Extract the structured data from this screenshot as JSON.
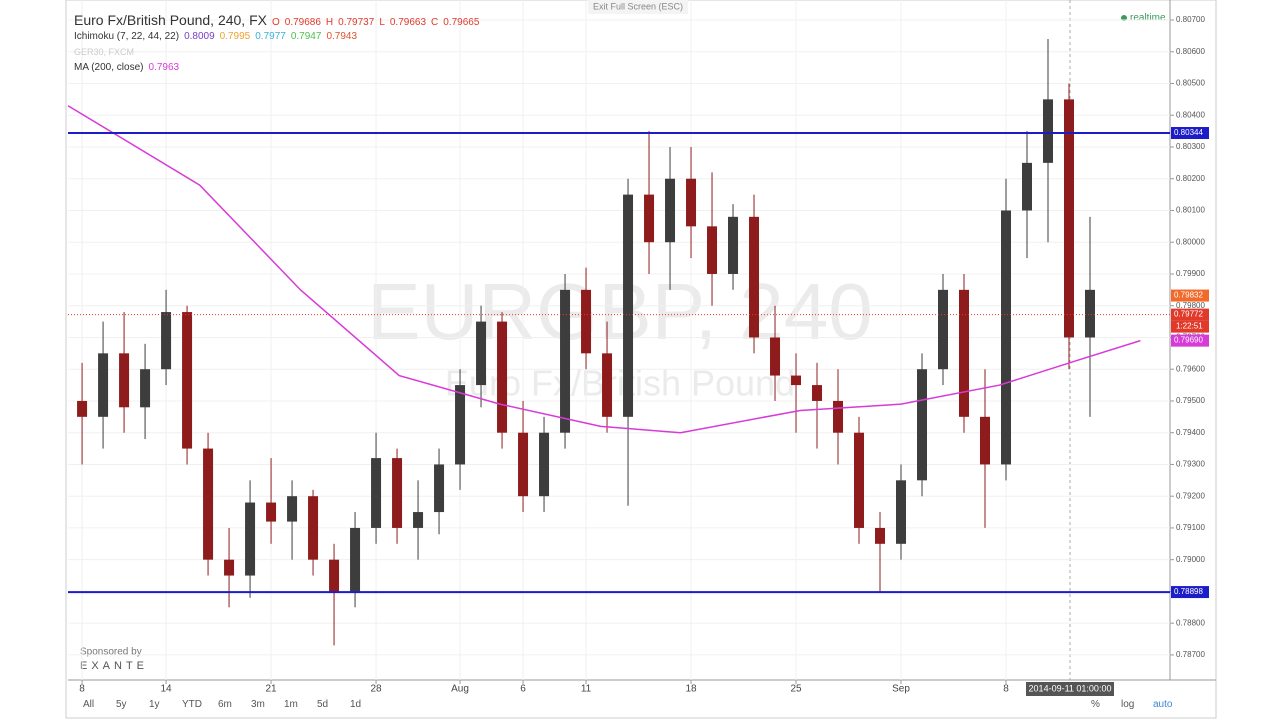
{
  "header": {
    "symbol": "Euro Fx/British Pound, 240, FX",
    "ohlc": [
      "O",
      "0.79686",
      "H",
      "0.79737",
      "L",
      "0.79663",
      "C",
      "0.79665"
    ],
    "ichimoku": {
      "name": "Ichimoku (7, 22, 44, 22)",
      "values": [
        {
          "text": "0.8009",
          "color": "#7b3fc4"
        },
        {
          "text": "0.7995",
          "color": "#f0a030"
        },
        {
          "text": "0.7977",
          "color": "#3ab0d8"
        },
        {
          "text": "0.7947",
          "color": "#4cc04c"
        },
        {
          "text": "0.7943",
          "color": "#e05030"
        }
      ]
    },
    "compare": "GER30, FXCM",
    "ma": {
      "name": "MA (200, close)",
      "value": "0.7963",
      "color": "#d83ad8"
    }
  },
  "exit": "Exit Full Screen (ESC)",
  "realtime": "realtime",
  "watermark": {
    "line1": "EURGBP, 240",
    "line2": "Euro Fx/British Pound"
  },
  "sponsor": {
    "by": "Sponsored by",
    "name": "EXANTE"
  },
  "cursor_time": "2014-09-11 01:00:00",
  "toolbar": {
    "ranges": [
      "All",
      "5y",
      "1y",
      "YTD",
      "6m",
      "3m",
      "1m",
      "5d",
      "1d"
    ],
    "right": [
      "%",
      "log",
      "auto"
    ]
  },
  "chart_data": {
    "type": "candlestick",
    "grid": true,
    "up_color": "#3d3d3d",
    "down_color": "#8e1c1c",
    "xlim": [
      -0.67,
      51.81
    ],
    "ylim": [
      0.78621,
      0.80763
    ],
    "xticks": [
      {
        "value": 0,
        "label": "8"
      },
      {
        "value": 4,
        "label": "14"
      },
      {
        "value": 9,
        "label": "21"
      },
      {
        "value": 14,
        "label": "28"
      },
      {
        "value": 18,
        "label": "Aug"
      },
      {
        "value": 21,
        "label": "6"
      },
      {
        "value": 24,
        "label": "11"
      },
      {
        "value": 29,
        "label": "18"
      },
      {
        "value": 34,
        "label": "25"
      },
      {
        "value": 39,
        "label": "Sep"
      },
      {
        "value": 44,
        "label": "8"
      }
    ],
    "yticks": [
      {
        "value": 0.807,
        "label": "0.80700"
      },
      {
        "value": 0.806,
        "label": "0.80600"
      },
      {
        "value": 0.805,
        "label": "0.80500"
      },
      {
        "value": 0.804,
        "label": "0.80400"
      },
      {
        "value": 0.803,
        "label": "0.80300"
      },
      {
        "value": 0.802,
        "label": "0.80200"
      },
      {
        "value": 0.801,
        "label": "0.80100"
      },
      {
        "value": 0.8,
        "label": "0.80000"
      },
      {
        "value": 0.799,
        "label": "0.79900"
      },
      {
        "value": 0.798,
        "label": "0.79800"
      },
      {
        "value": 0.797,
        "label": "0.79700"
      },
      {
        "value": 0.796,
        "label": "0.79600"
      },
      {
        "value": 0.795,
        "label": "0.79500"
      },
      {
        "value": 0.794,
        "label": "0.79400"
      },
      {
        "value": 0.793,
        "label": "0.79300"
      },
      {
        "value": 0.792,
        "label": "0.79200"
      },
      {
        "value": 0.791,
        "label": "0.79100"
      },
      {
        "value": 0.79,
        "label": "0.79000"
      },
      {
        "value": 0.789,
        "label": "0.78900"
      },
      {
        "value": 0.788,
        "label": "0.78800"
      },
      {
        "value": 0.787,
        "label": "0.78700"
      }
    ],
    "x": [
      0,
      1,
      2,
      3,
      4,
      5,
      6,
      7,
      8,
      9,
      10,
      11,
      12,
      13,
      14,
      15,
      16,
      17,
      18,
      19,
      20,
      21,
      22,
      23,
      24,
      25,
      26,
      27,
      28,
      29,
      30,
      31,
      32,
      33,
      34,
      35,
      36,
      37,
      38,
      39,
      40,
      41,
      42,
      43,
      44,
      45,
      46,
      47,
      48
    ],
    "open": [
      0.795,
      0.7945,
      0.7965,
      0.7948,
      0.796,
      0.7978,
      0.7935,
      0.79,
      0.7895,
      0.7918,
      0.7912,
      0.792,
      0.79,
      0.789,
      0.791,
      0.7932,
      0.791,
      0.7915,
      0.793,
      0.7955,
      0.7975,
      0.794,
      0.792,
      0.794,
      0.7985,
      0.7965,
      0.7945,
      0.8015,
      0.8,
      0.802,
      0.8005,
      0.799,
      0.8008,
      0.797,
      0.7958,
      0.7955,
      0.795,
      0.794,
      0.791,
      0.7905,
      0.7925,
      0.796,
      0.7985,
      0.7945,
      0.793,
      0.801,
      0.8025,
      0.8045,
      0.797
    ],
    "high": [
      0.7962,
      0.7975,
      0.7978,
      0.7968,
      0.7985,
      0.798,
      0.794,
      0.791,
      0.7925,
      0.7932,
      0.7925,
      0.7922,
      0.7905,
      0.7915,
      0.794,
      0.7935,
      0.7925,
      0.7935,
      0.796,
      0.798,
      0.7978,
      0.795,
      0.7945,
      0.799,
      0.7992,
      0.7975,
      0.802,
      0.8035,
      0.803,
      0.803,
      0.8022,
      0.8012,
      0.8015,
      0.798,
      0.7965,
      0.7962,
      0.796,
      0.7945,
      0.7915,
      0.793,
      0.7965,
      0.799,
      0.799,
      0.796,
      0.802,
      0.8035,
      0.8064,
      0.805,
      0.8008
    ],
    "low": [
      0.793,
      0.7935,
      0.794,
      0.7938,
      0.7955,
      0.793,
      0.7895,
      0.7885,
      0.7888,
      0.7905,
      0.79,
      0.7895,
      0.7873,
      0.7885,
      0.7905,
      0.7905,
      0.79,
      0.7908,
      0.7922,
      0.7948,
      0.7935,
      0.7915,
      0.7915,
      0.7935,
      0.796,
      0.794,
      0.7917,
      0.799,
      0.7985,
      0.7995,
      0.798,
      0.7985,
      0.7965,
      0.795,
      0.794,
      0.7935,
      0.793,
      0.7905,
      0.789,
      0.79,
      0.792,
      0.7955,
      0.794,
      0.791,
      0.7925,
      0.7995,
      0.8,
      0.796,
      0.7945
    ],
    "close": [
      0.7945,
      0.7965,
      0.7948,
      0.796,
      0.7978,
      0.7935,
      0.79,
      0.7895,
      0.7918,
      0.7912,
      0.792,
      0.79,
      0.789,
      0.791,
      0.7932,
      0.791,
      0.7915,
      0.793,
      0.7955,
      0.7975,
      0.794,
      0.792,
      0.794,
      0.7985,
      0.7965,
      0.7945,
      0.8015,
      0.8,
      0.802,
      0.8005,
      0.799,
      0.8008,
      0.797,
      0.7958,
      0.7955,
      0.795,
      0.794,
      0.791,
      0.7905,
      0.7925,
      0.796,
      0.7985,
      0.7945,
      0.793,
      0.801,
      0.8025,
      0.8045,
      0.797,
      0.7985
    ],
    "ma": {
      "color": "#d83ad8",
      "x": [
        -0.67,
        5.6,
        10.4,
        15.1,
        19.9,
        24.7,
        28.5,
        34.2,
        39,
        43.7,
        47.5,
        50.4
      ],
      "values": [
        0.8043,
        0.8018,
        0.7985,
        0.7958,
        0.7949,
        0.7942,
        0.794,
        0.7947,
        0.7949,
        0.7955,
        0.7963,
        0.7969
      ]
    },
    "levels": [
      {
        "value": 0.80344,
        "label": "0.80344"
      },
      {
        "value": 0.78898,
        "label": "0.78898"
      }
    ],
    "level_color": "#1c1cc8",
    "price_labels": [
      {
        "value": 0.79832,
        "label": "0.79832",
        "color": "#f26a2a"
      },
      {
        "value": 0.79772,
        "label": "0.79772",
        "color": "#e23a2a"
      },
      {
        "value": 0.7969,
        "label": "0.79690",
        "color": "#d83ad8"
      }
    ],
    "countdown": "1:22:51"
  }
}
